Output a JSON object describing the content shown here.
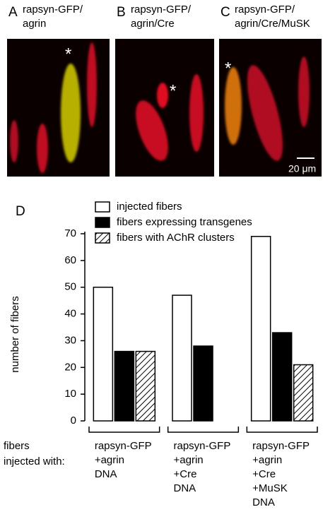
{
  "panels": [
    {
      "letter": "A",
      "caption": [
        "rapsyn-GFP/",
        "agrin"
      ]
    },
    {
      "letter": "B",
      "caption": [
        "rapsyn-GFP/",
        "agrin/Cre"
      ]
    },
    {
      "letter": "C",
      "caption": [
        "rapsyn-GFP/",
        "agrin/Cre/MuSK"
      ]
    }
  ],
  "scale_bar": "20 μm",
  "marker": "*",
  "chart_data": {
    "type": "bar",
    "panel": "D",
    "y_label": "number of fibers",
    "x_label": [
      "fibers",
      "injected with:"
    ],
    "categories": [
      [
        "rapsyn-GFP",
        "+agrin",
        "DNA"
      ],
      [
        "rapsyn-GFP",
        "+agrin",
        "+Cre",
        "DNA"
      ],
      [
        "rapsyn-GFP",
        "+agrin",
        "+Cre",
        "+MuSK",
        "DNA"
      ]
    ],
    "series": [
      {
        "name": "injected fibers",
        "color": "#ffffff",
        "values": [
          50,
          47,
          69
        ]
      },
      {
        "name": "fibers expressing transgenes",
        "color": "#000000",
        "values": [
          26,
          28,
          33
        ]
      },
      {
        "name": "fibers with AChR clusters",
        "color": "#ffffff",
        "hatch": true,
        "values": [
          26,
          null,
          21
        ]
      }
    ],
    "ylim": [
      0,
      70
    ],
    "yticks": [
      0,
      10,
      20,
      30,
      40,
      50,
      60,
      70
    ]
  }
}
